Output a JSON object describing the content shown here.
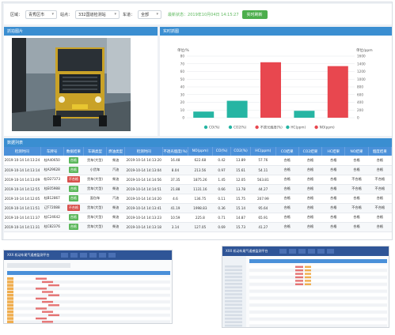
{
  "filters": {
    "region_label": "区域：",
    "region_value": "青秀区市",
    "site_label": "站点：",
    "site_value": "332国道检测站",
    "vehicle_label": "车道：",
    "vehicle_value": "全部",
    "status_text": "最新状态：2019年10月04日 14:15:27",
    "query_button": "实时刷新"
  },
  "photo_panel": {
    "title": "抓拍图片"
  },
  "chart_panel": {
    "title": "实时抓图"
  },
  "chart_data": {
    "type": "bar",
    "categories": [
      "CO(%)",
      "CO2(%)",
      "不透光烟度(%)",
      "HC(ppm)",
      "NO(ppm)"
    ],
    "values": [
      8,
      22,
      72,
      180,
      1340
    ],
    "series_axis": [
      "left",
      "left",
      "left",
      "right",
      "right"
    ],
    "colors": [
      "#26b5a3",
      "#26b5a3",
      "#e8474f",
      "#26b5a3",
      "#e8474f"
    ],
    "ylabel_left": "单位/%",
    "ylabel_right": "单位/ppm",
    "ylim_left": [
      0,
      80
    ],
    "ylim_right": [
      0,
      1600
    ],
    "yticks_left": [
      "80",
      "70",
      "60",
      "50",
      "40",
      "30",
      "20",
      "10",
      "0"
    ],
    "yticks_right": [
      "1600",
      "1400",
      "1200",
      "1000",
      "800",
      "600",
      "400",
      "200",
      "0"
    ],
    "legend": [
      "CO(%)",
      "CO2(%)",
      "不透光烟度(%)",
      "HC(ppm)",
      "NO(ppm)"
    ],
    "legend_colors": [
      "#26b5a3",
      "#26b5a3",
      "#e8474f",
      "#26b5a3",
      "#e8474f"
    ],
    "grid": true,
    "legend_position": "bottom"
  },
  "table_panel": {
    "title": "数据列表"
  },
  "table": {
    "headers": [
      "检测时间",
      "车牌号",
      "数据结果",
      "车辆类型",
      "燃油类型",
      "检测时间",
      "不透光烟度(%)",
      "NO(ppm)",
      "CO(%)",
      "CO2(%)",
      "HC(ppm)",
      "CO结果",
      "CO2结果",
      "HC结果",
      "NO结果",
      "烟度结果"
    ],
    "rows": [
      [
        "2019-10-14 14:13:24",
        "桂A40650",
        "合格",
        "货车(大型)",
        "柴油",
        "2019-10-14 14:13:20",
        "16.48",
        "622.68",
        "0.42",
        "13.89",
        "57.76",
        "合格",
        "合格",
        "合格",
        "合格",
        "合格"
      ],
      [
        "2019-10-14 14:13:14",
        "桂A29628",
        "合格",
        "小货车",
        "汽油",
        "2019-10-14 14:13:04",
        "8.04",
        "213.56",
        "0.97",
        "15.61",
        "54.11",
        "合格",
        "合格",
        "合格",
        "合格",
        "合格"
      ],
      [
        "2019-10-14 14:13:09",
        "桂D27373",
        "不合格",
        "货车(大型)",
        "柴油",
        "2019-10-14 14:14:56",
        "37.35",
        "1875.26",
        "1.45",
        "12.05",
        "563.81",
        "合格",
        "合格",
        "合格",
        "不合格",
        "不合格"
      ],
      [
        "2019-10-14 14:12:55",
        "桂E05988",
        "合格",
        "货车(大型)",
        "柴油",
        "2019-10-14 14:14:51",
        "21.88",
        "1131.16",
        "0.66",
        "13.78",
        "44.27",
        "合格",
        "合格",
        "合格",
        "不合格",
        "不合格"
      ],
      [
        "2019-10-14 14:12:05",
        "桂B12867",
        "合格",
        "面包车",
        "汽油",
        "2019-10-14 14:14:20",
        "4.6",
        "136.75",
        "0.11",
        "15.75",
        "207.99",
        "合格",
        "合格",
        "合格",
        "合格",
        "合格"
      ],
      [
        "2019-10-14 14:11:51",
        "辽F72088",
        "不合格",
        "货车(大型)",
        "柴油",
        "2019-10-14 14:13:41",
        "41.19",
        "1998.83",
        "0.36",
        "15.14",
        "95.64",
        "合格",
        "合格",
        "合格",
        "不合格",
        "不合格"
      ],
      [
        "2019-10-14 14:11:37",
        "桂C24642",
        "合格",
        "货车(大型)",
        "柴油",
        "2019-10-14 14:13:23",
        "10.59",
        "225.8",
        "0.71",
        "14.87",
        "65.91",
        "合格",
        "合格",
        "合格",
        "合格",
        "合格"
      ],
      [
        "2019-10-14 14:11:31",
        "桂C82376",
        "合格",
        "货车(大型)",
        "柴油",
        "2019-10-14 14:13:18",
        "3.14",
        "127.05",
        "0.69",
        "15.73",
        "41.27",
        "合格",
        "合格",
        "合格",
        "合格",
        "合格"
      ]
    ]
  },
  "thumb_left": {
    "title": "XXX 机动车尾气遥感监测平台"
  },
  "thumb_right": {
    "title": "XXX 机动车尾气遥感监测平台"
  }
}
